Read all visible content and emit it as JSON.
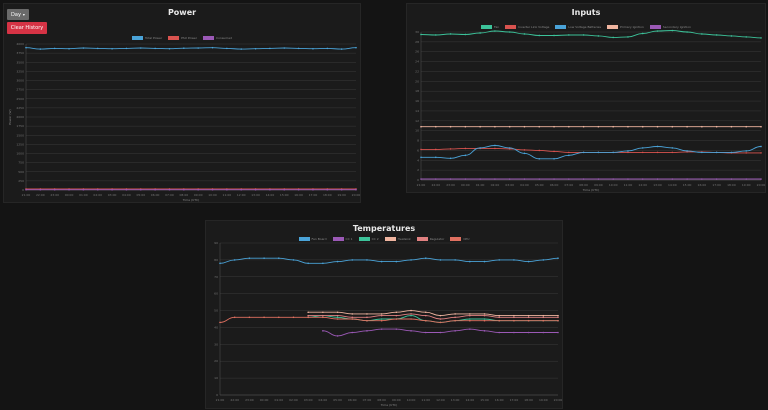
{
  "controls": {
    "range_label": "Day",
    "range_caret": "▾",
    "clear_label": "Clear History"
  },
  "x_ticks": [
    "21:00",
    "22:00",
    "23:00",
    "00:00",
    "01:00",
    "02:00",
    "03:00",
    "04:00",
    "05:00",
    "06:00",
    "07:00",
    "08:00",
    "09:00",
    "10:00",
    "11:00",
    "12:00",
    "13:00",
    "14:00",
    "15:00",
    "16:00",
    "17:00",
    "18:00",
    "19:00",
    "20:00"
  ],
  "chart_data": [
    {
      "id": "power",
      "type": "line",
      "title": "Power",
      "xlabel": "Time (UTC)",
      "ylabel": "Power (W)",
      "ylim": [
        0,
        4000
      ],
      "yticks": [
        "0",
        "250",
        "500",
        "750",
        "1000",
        "1250",
        "1500",
        "1750",
        "2000",
        "2250",
        "2500",
        "2750",
        "3000",
        "3250",
        "3500",
        "3750",
        "4000"
      ],
      "grid": true,
      "legend": "top-center",
      "series": [
        {
          "name": "Total Power",
          "color": "#4aa3d8",
          "values": [
            3900,
            3860,
            3880,
            3870,
            3890,
            3880,
            3870,
            3880,
            3890,
            3880,
            3870,
            3885,
            3890,
            3900,
            3880,
            3860,
            3870,
            3880,
            3890,
            3880,
            3870,
            3880,
            3860,
            3900
          ]
        },
        {
          "name": "PSU Power",
          "color": "#d9534f",
          "values": [
            30,
            30,
            30,
            30,
            30,
            30,
            30,
            30,
            30,
            30,
            30,
            30,
            30,
            30,
            30,
            30,
            30,
            30,
            30,
            30,
            30,
            30,
            30,
            30
          ]
        },
        {
          "name": "Consumed",
          "color": "#9b59b6",
          "values": [
            8,
            8,
            8,
            8,
            8,
            8,
            8,
            8,
            8,
            8,
            8,
            8,
            8,
            8,
            8,
            8,
            8,
            8,
            8,
            8,
            8,
            8,
            8,
            8
          ]
        }
      ]
    },
    {
      "id": "inputs",
      "type": "line",
      "title": "Inputs",
      "xlabel": "Time (UTC)",
      "ylabel": "",
      "ylim": [
        0,
        30
      ],
      "yticks": [
        "0",
        "2",
        "4",
        "6",
        "8",
        "10",
        "12",
        "14",
        "16",
        "18",
        "20",
        "22",
        "24",
        "26",
        "28",
        "30"
      ],
      "grid": true,
      "legend": "top-center",
      "series": [
        {
          "name": "Fan",
          "color": "#3cc39a",
          "values": [
            29.5,
            29.4,
            29.6,
            29.5,
            29.8,
            30.2,
            30.0,
            29.6,
            29.3,
            29.3,
            29.4,
            29.4,
            29.2,
            28.9,
            29.0,
            29.7,
            30.2,
            30.3,
            30.0,
            29.6,
            29.4,
            29.2,
            29.0,
            28.8
          ]
        },
        {
          "name": "Inverter Link Voltage",
          "color": "#d9534f",
          "values": [
            6.2,
            6.2,
            6.3,
            6.4,
            6.4,
            6.4,
            6.3,
            6.1,
            6.0,
            5.8,
            5.6,
            5.6,
            5.6,
            5.6,
            5.6,
            5.6,
            5.6,
            5.6,
            5.7,
            5.7,
            5.6,
            5.5,
            5.5,
            5.5
          ]
        },
        {
          "name": "Low Voltage Batteries",
          "color": "#4aa3d8",
          "values": [
            4.6,
            4.6,
            4.4,
            5.0,
            6.5,
            7.0,
            6.5,
            5.4,
            4.3,
            4.3,
            5.0,
            5.6,
            5.6,
            5.6,
            5.9,
            6.5,
            6.8,
            6.5,
            5.9,
            5.6,
            5.6,
            5.6,
            5.9,
            6.8
          ]
        },
        {
          "name": "Primary Ignition",
          "color": "#f0b5a0",
          "values": [
            10.8,
            10.8,
            10.8,
            10.8,
            10.8,
            10.8,
            10.8,
            10.8,
            10.8,
            10.8,
            10.8,
            10.8,
            10.8,
            10.8,
            10.8,
            10.8,
            10.8,
            10.8,
            10.8,
            10.8,
            10.8,
            10.8,
            10.8,
            10.8
          ]
        },
        {
          "name": "Secondary Ignition",
          "color": "#9b59b6",
          "values": [
            0.2,
            0.2,
            0.2,
            0.2,
            0.2,
            0.2,
            0.2,
            0.2,
            0.2,
            0.2,
            0.2,
            0.2,
            0.2,
            0.2,
            0.2,
            0.2,
            0.2,
            0.2,
            0.2,
            0.2,
            0.2,
            0.2,
            0.2,
            0.2
          ]
        }
      ]
    },
    {
      "id": "temps",
      "type": "line",
      "title": "Temperatures",
      "xlabel": "Time (UTC)",
      "ylabel": "",
      "ylim": [
        0,
        90
      ],
      "yticks": [
        "0",
        "10",
        "20",
        "30",
        "40",
        "50",
        "60",
        "70",
        "80",
        "90"
      ],
      "grid": true,
      "legend": "top-center",
      "series": [
        {
          "name": "Fan Board",
          "color": "#4aa3d8",
          "values": [
            78,
            80,
            81,
            81,
            81,
            80,
            78,
            78,
            79,
            80,
            80,
            79,
            79,
            80,
            81,
            80,
            80,
            79,
            79,
            80,
            80,
            79,
            80,
            81
          ]
        },
        {
          "name": "CC 1",
          "color": "#9b59b6",
          "values": [
            null,
            null,
            null,
            null,
            null,
            null,
            null,
            38,
            35,
            37,
            38,
            39,
            39,
            38,
            37,
            37,
            38,
            39,
            38,
            37,
            37,
            37,
            37,
            37
          ]
        },
        {
          "name": "CC 2",
          "color": "#3cc39a",
          "values": [
            null,
            null,
            null,
            null,
            null,
            null,
            46,
            47,
            46,
            45,
            44,
            45,
            45,
            47,
            44,
            43,
            44,
            45,
            45,
            44,
            44,
            44,
            44,
            44
          ]
        },
        {
          "name": "Heatsink",
          "color": "#f0b5a0",
          "values": [
            null,
            null,
            null,
            null,
            null,
            null,
            49,
            49,
            49,
            48,
            48,
            48,
            49,
            50,
            49,
            47,
            48,
            48,
            48,
            47,
            47,
            47,
            47,
            47
          ]
        },
        {
          "name": "Regulator",
          "color": "#e08080",
          "values": [
            null,
            null,
            null,
            null,
            null,
            null,
            47,
            47,
            47,
            46,
            46,
            47,
            47,
            48,
            47,
            45,
            46,
            47,
            47,
            46,
            46,
            46,
            46,
            46
          ]
        },
        {
          "name": "CPU",
          "color": "#e07060",
          "values": [
            43,
            46,
            46,
            46,
            46,
            46,
            46,
            46,
            45,
            45,
            44,
            44,
            45,
            45,
            44,
            43,
            44,
            44,
            44,
            44,
            44,
            44,
            44,
            44
          ]
        }
      ]
    }
  ]
}
